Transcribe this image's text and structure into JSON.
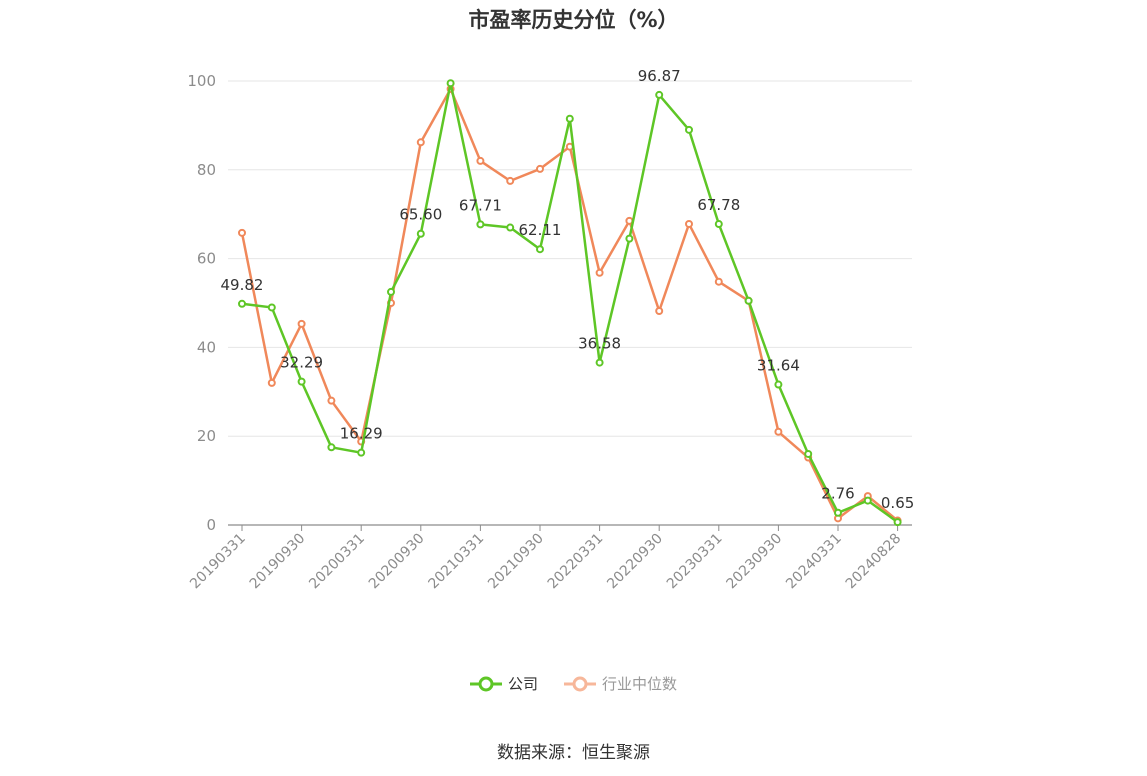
{
  "title": "市盈率历史分位（%）",
  "source": "数据来源：恒生聚源",
  "colors": {
    "company": "#5ec626",
    "industry": "#f0885a",
    "axis": "#8c8c8c",
    "grid": "#e6e6e6"
  },
  "legend": {
    "company_label": "公司",
    "industry_label": "行业中位数"
  },
  "chart_data": {
    "type": "line",
    "title": "市盈率历史分位（%）",
    "ylim": [
      0,
      100
    ],
    "yticks": [
      0,
      20,
      40,
      60,
      80,
      100
    ],
    "grid": true,
    "legend_position": "bottom-center",
    "x": [
      "20190331",
      "20190630",
      "20190930",
      "20191231",
      "20200331",
      "20200630",
      "20200930",
      "20201231",
      "20210331",
      "20210630",
      "20210930",
      "20211231",
      "20220331",
      "20220630",
      "20220930",
      "20221231",
      "20230331",
      "20230630",
      "20230930",
      "20231231",
      "20240331",
      "20240630",
      "20240828"
    ],
    "xtick_labels": [
      "20190331",
      "20190930",
      "20200331",
      "20200930",
      "20210331",
      "20210930",
      "20220331",
      "20220930",
      "20230331",
      "20230930",
      "20240331",
      "20240828"
    ],
    "series": [
      {
        "name": "公司",
        "values": [
          49.82,
          49.0,
          32.29,
          17.5,
          16.29,
          52.5,
          65.6,
          99.5,
          67.71,
          67.0,
          62.11,
          91.5,
          36.58,
          64.5,
          96.87,
          89.0,
          67.78,
          50.5,
          31.64,
          16.0,
          2.76,
          5.5,
          0.65
        ],
        "labels": {
          "0": "49.82",
          "2": "32.29",
          "4": "16.29",
          "6": "65.60",
          "8": "67.71",
          "10": "62.11",
          "12": "36.58",
          "14": "96.87",
          "16": "67.78",
          "18": "31.64",
          "20": "2.76",
          "22": "0.65"
        }
      },
      {
        "name": "行业中位数",
        "values": [
          65.8,
          32.0,
          45.3,
          28.0,
          18.8,
          50.0,
          86.2,
          98.2,
          82.0,
          77.5,
          80.2,
          85.2,
          56.8,
          68.5,
          48.2,
          67.8,
          54.8,
          50.5,
          21.0,
          15.2,
          1.5,
          6.5,
          1.0
        ]
      }
    ]
  }
}
